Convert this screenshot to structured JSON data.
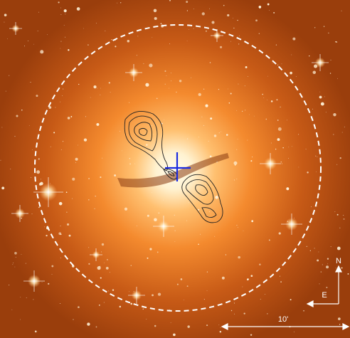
{
  "compass": {
    "north": "N",
    "east": "E"
  },
  "scale_bar": {
    "label": "10'"
  }
}
